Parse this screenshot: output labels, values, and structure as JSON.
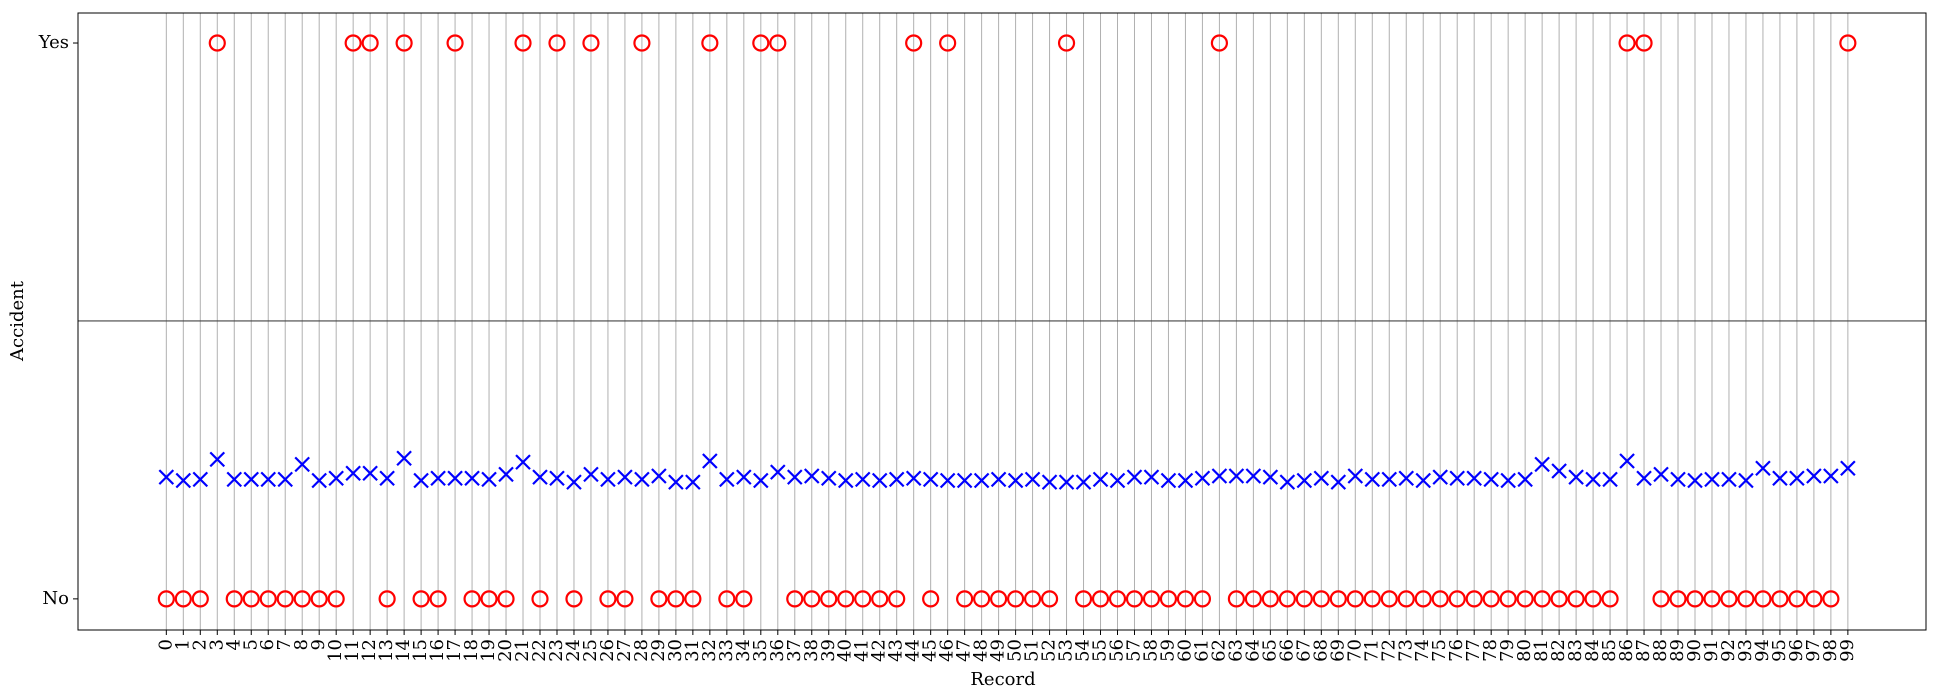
{
  "chart_data": {
    "type": "scatter",
    "x_label": "Record",
    "y_label": "Accident",
    "x": [
      0,
      1,
      2,
      3,
      4,
      5,
      6,
      7,
      8,
      9,
      10,
      11,
      12,
      13,
      14,
      15,
      16,
      17,
      18,
      19,
      20,
      21,
      22,
      23,
      24,
      25,
      26,
      27,
      28,
      29,
      30,
      31,
      32,
      33,
      34,
      35,
      36,
      37,
      38,
      39,
      40,
      41,
      42,
      43,
      44,
      45,
      46,
      47,
      48,
      49,
      50,
      51,
      52,
      53,
      54,
      55,
      56,
      57,
      58,
      59,
      60,
      61,
      62,
      63,
      64,
      65,
      66,
      67,
      68,
      69,
      70,
      71,
      72,
      73,
      74,
      75,
      76,
      77,
      78,
      79,
      80,
      81,
      82,
      83,
      84,
      85,
      86,
      87,
      88,
      89,
      90,
      91,
      92,
      93,
      94,
      95,
      96,
      97,
      98,
      99
    ],
    "xlim": [
      -5.2,
      103.6
    ],
    "xticks": [
      0,
      1,
      2,
      3,
      4,
      5,
      6,
      7,
      8,
      9,
      10,
      11,
      12,
      13,
      14,
      15,
      16,
      17,
      18,
      19,
      20,
      21,
      22,
      23,
      24,
      25,
      26,
      27,
      28,
      29,
      30,
      31,
      32,
      33,
      34,
      35,
      36,
      37,
      38,
      39,
      40,
      41,
      42,
      43,
      44,
      45,
      46,
      47,
      48,
      49,
      50,
      51,
      52,
      53,
      54,
      55,
      56,
      57,
      58,
      59,
      60,
      61,
      62,
      63,
      64,
      65,
      66,
      67,
      68,
      69,
      70,
      71,
      72,
      73,
      74,
      75,
      76,
      77,
      78,
      79,
      80,
      81,
      82,
      83,
      84,
      85,
      86,
      87,
      88,
      89,
      90,
      91,
      92,
      93,
      94,
      95,
      96,
      97,
      98,
      99
    ],
    "ylim": [
      -0.056,
      1.054
    ],
    "yticks": [
      {
        "value": 0,
        "label": "No"
      },
      {
        "value": 1,
        "label": "Yes"
      }
    ],
    "hline": 0.5,
    "grid": "x",
    "series": [
      {
        "color": "#ff0000",
        "marker": "o",
        "values": [
          0,
          0,
          0,
          1,
          0,
          0,
          0,
          0,
          0,
          0,
          0,
          1,
          1,
          0,
          1,
          0,
          0,
          1,
          0,
          0,
          0,
          1,
          0,
          1,
          0,
          1,
          0,
          0,
          1,
          0,
          0,
          0,
          1,
          0,
          0,
          1,
          1,
          0,
          0,
          0,
          0,
          0,
          0,
          0,
          1,
          0,
          1,
          0,
          0,
          0,
          0,
          0,
          0,
          1,
          0,
          0,
          0,
          0,
          0,
          0,
          0,
          0,
          1,
          0,
          0,
          0,
          0,
          0,
          0,
          0,
          0,
          0,
          0,
          0,
          0,
          0,
          0,
          0,
          0,
          0,
          0,
          0,
          0,
          0,
          0,
          0,
          1,
          1,
          0,
          0,
          0,
          0,
          0,
          0,
          0,
          0,
          0,
          0,
          0,
          1
        ]
      },
      {
        "color": "#0000ff",
        "marker": "x",
        "values": [
          0.219,
          0.213,
          0.215,
          0.251,
          0.215,
          0.215,
          0.215,
          0.215,
          0.242,
          0.213,
          0.217,
          0.226,
          0.226,
          0.217,
          0.253,
          0.213,
          0.217,
          0.217,
          0.217,
          0.215,
          0.224,
          0.246,
          0.219,
          0.217,
          0.21,
          0.224,
          0.215,
          0.219,
          0.215,
          0.221,
          0.21,
          0.21,
          0.248,
          0.215,
          0.219,
          0.213,
          0.228,
          0.219,
          0.221,
          0.217,
          0.213,
          0.215,
          0.213,
          0.215,
          0.217,
          0.215,
          0.213,
          0.213,
          0.213,
          0.215,
          0.213,
          0.215,
          0.21,
          0.21,
          0.21,
          0.215,
          0.213,
          0.219,
          0.219,
          0.213,
          0.213,
          0.217,
          0.221,
          0.221,
          0.221,
          0.219,
          0.21,
          0.213,
          0.217,
          0.21,
          0.221,
          0.215,
          0.215,
          0.217,
          0.213,
          0.219,
          0.217,
          0.217,
          0.215,
          0.213,
          0.215,
          0.242,
          0.23,
          0.219,
          0.215,
          0.215,
          0.248,
          0.217,
          0.224,
          0.215,
          0.213,
          0.215,
          0.215,
          0.213,
          0.235,
          0.217,
          0.217,
          0.221,
          0.221,
          0.235
        ]
      }
    ]
  }
}
